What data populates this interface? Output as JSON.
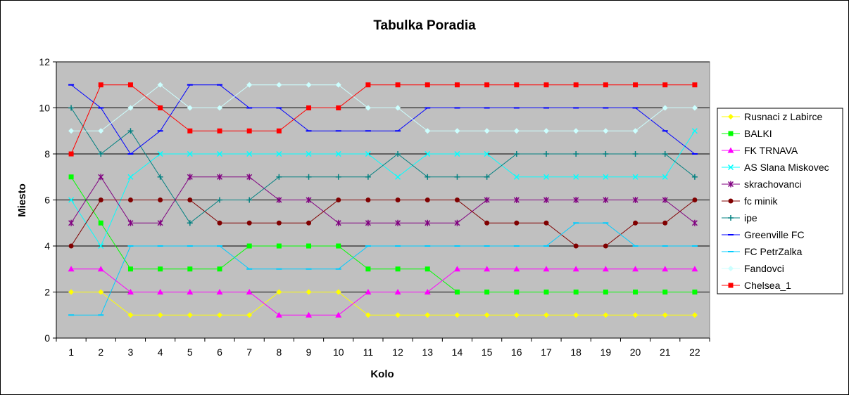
{
  "chart_data": {
    "type": "line",
    "title": "Tabulka Poradia",
    "xlabel": "Kolo",
    "ylabel": "Miesto",
    "x": [
      1,
      2,
      3,
      4,
      5,
      6,
      7,
      8,
      9,
      10,
      11,
      12,
      13,
      14,
      15,
      16,
      17,
      18,
      19,
      20,
      21,
      22
    ],
    "x_tick_labels": [
      "1",
      "2",
      "3",
      "4",
      "5",
      "6",
      "7",
      "8",
      "9",
      "10",
      "11",
      "12",
      "13",
      "14",
      "15",
      "16",
      "17",
      "18",
      "19",
      "20",
      "21",
      "22"
    ],
    "ylim": [
      0,
      12
    ],
    "y_ticks": [
      0,
      2,
      4,
      6,
      8,
      10,
      12
    ],
    "y_tick_labels": [
      "0",
      "2",
      "4",
      "6",
      "8",
      "10",
      "12"
    ],
    "grid": "horizontal",
    "plot_background": "#C0C0C0",
    "legend_position": "right",
    "series": [
      {
        "name": "Rusnaci z Labirce",
        "color": "#FFFF00",
        "marker": "diamond",
        "values": [
          2,
          2,
          1,
          1,
          1,
          1,
          1,
          2,
          2,
          2,
          1,
          1,
          1,
          1,
          1,
          1,
          1,
          1,
          1,
          1,
          1,
          1
        ]
      },
      {
        "name": "BALKI",
        "color": "#00FF00",
        "marker": "square",
        "values": [
          7,
          5,
          3,
          3,
          3,
          3,
          4,
          4,
          4,
          4,
          3,
          3,
          3,
          2,
          2,
          2,
          2,
          2,
          2,
          2,
          2,
          2
        ]
      },
      {
        "name": "FK TRNAVA",
        "color": "#FF00FF",
        "marker": "triangle",
        "values": [
          3,
          3,
          2,
          2,
          2,
          2,
          2,
          1,
          1,
          1,
          2,
          2,
          2,
          3,
          3,
          3,
          3,
          3,
          3,
          3,
          3,
          3
        ]
      },
      {
        "name": "AS Slana Miskovec",
        "color": "#00FFFF",
        "marker": "x",
        "values": [
          6,
          4,
          7,
          8,
          8,
          8,
          8,
          8,
          8,
          8,
          8,
          7,
          8,
          8,
          8,
          7,
          7,
          7,
          7,
          7,
          7,
          9
        ]
      },
      {
        "name": "skrachovanci",
        "color": "#800080",
        "marker": "star",
        "values": [
          5,
          7,
          5,
          5,
          7,
          7,
          7,
          6,
          6,
          5,
          5,
          5,
          5,
          5,
          6,
          6,
          6,
          6,
          6,
          6,
          6,
          5
        ]
      },
      {
        "name": "fc minik",
        "color": "#800000",
        "marker": "circle",
        "values": [
          4,
          6,
          6,
          6,
          6,
          5,
          5,
          5,
          5,
          6,
          6,
          6,
          6,
          6,
          5,
          5,
          5,
          4,
          4,
          5,
          5,
          6
        ]
      },
      {
        "name": "ipe",
        "color": "#008080",
        "marker": "plus",
        "values": [
          10,
          8,
          9,
          7,
          5,
          6,
          6,
          7,
          7,
          7,
          7,
          8,
          7,
          7,
          7,
          8,
          8,
          8,
          8,
          8,
          8,
          7
        ]
      },
      {
        "name": "Greenville FC",
        "color": "#0000FF",
        "marker": "dash",
        "values": [
          11,
          10,
          8,
          9,
          11,
          11,
          10,
          10,
          9,
          9,
          9,
          9,
          10,
          10,
          10,
          10,
          10,
          10,
          10,
          10,
          9,
          8
        ]
      },
      {
        "name": "FC PetrZalka",
        "color": "#00CCFF",
        "marker": "dash",
        "values": [
          1,
          1,
          4,
          4,
          4,
          4,
          3,
          3,
          3,
          3,
          4,
          4,
          4,
          4,
          4,
          4,
          4,
          5,
          5,
          4,
          4,
          4
        ]
      },
      {
        "name": "Fandovci",
        "color": "#CCFFFF",
        "marker": "diamond",
        "values": [
          9,
          9,
          10,
          11,
          10,
          10,
          11,
          11,
          11,
          11,
          10,
          10,
          9,
          9,
          9,
          9,
          9,
          9,
          9,
          9,
          10,
          10
        ]
      },
      {
        "name": "Chelsea_1",
        "color": "#FF0000",
        "marker": "square",
        "values": [
          8,
          11,
          11,
          10,
          9,
          9,
          9,
          9,
          10,
          10,
          11,
          11,
          11,
          11,
          11,
          11,
          11,
          11,
          11,
          11,
          11,
          11
        ]
      }
    ]
  }
}
